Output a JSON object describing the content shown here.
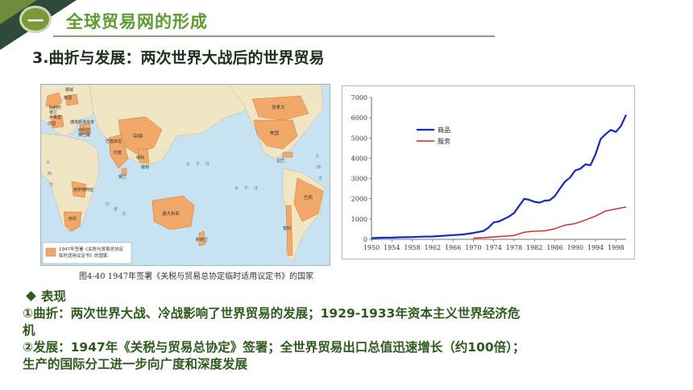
{
  "section": {
    "number": "一",
    "title": "全球贸易网的形成"
  },
  "subtitle": "3.曲折与发展：两次世界大战后的世界贸易",
  "map": {
    "caption": "图4-40   1947年签署《关税与贸易总协定临时适用议定书》的国家",
    "legend_text_1": "1947年签署《关税与贸易总协定",
    "legend_text_2": "临时适用议定书》的国家",
    "labels": [
      "英国",
      "比利时",
      "荷兰",
      "卢森堡",
      "法国",
      "挪威",
      "捷克斯洛伐克",
      "叙利亚",
      "黎巴嫩",
      "印度",
      "巴基斯坦",
      "锡兰",
      "缅甸",
      "中国",
      "缅甸",
      "南罗德西亚",
      "南非",
      "澳大利亚",
      "新西兰",
      "加拿大",
      "美国",
      "古巴",
      "巴西",
      "智利"
    ],
    "ocean_labels": [
      "大",
      "西",
      "洋",
      "太",
      "平",
      "洋",
      "印",
      "度",
      "洋",
      "太",
      "平",
      "洋",
      "大",
      "西",
      "洋"
    ]
  },
  "chart_data": {
    "type": "line",
    "x_ticks": [
      "1950",
      "1954",
      "1958",
      "1962",
      "1966",
      "1970",
      "1974",
      "1978",
      "1982",
      "1986",
      "1990",
      "1994",
      "1998"
    ],
    "y_ticks": [
      "0",
      "1000",
      "2000",
      "3000",
      "4000",
      "5000",
      "6000",
      "7000"
    ],
    "ylim": [
      0,
      7000
    ],
    "xlim": [
      1950,
      2000
    ],
    "legend_position": "top-left",
    "colors": {
      "goods": "#1428c8",
      "services": "#d42020"
    },
    "series": [
      {
        "name": "商品",
        "x": [
          1950,
          1952,
          1954,
          1956,
          1958,
          1960,
          1962,
          1964,
          1966,
          1968,
          1970,
          1972,
          1973,
          1974,
          1975,
          1976,
          1977,
          1978,
          1979,
          1980,
          1981,
          1982,
          1983,
          1984,
          1985,
          1986,
          1987,
          1988,
          1989,
          1990,
          1991,
          1992,
          1993,
          1994,
          1995,
          1996,
          1997,
          1998,
          1999,
          2000
        ],
        "y": [
          60,
          80,
          85,
          105,
          110,
          130,
          140,
          175,
          205,
          240,
          315,
          410,
          580,
          840,
          880,
          1000,
          1120,
          1300,
          1650,
          2000,
          1950,
          1850,
          1810,
          1910,
          1930,
          2130,
          2500,
          2850,
          3050,
          3400,
          3480,
          3700,
          3660,
          4200,
          4950,
          5200,
          5400,
          5300,
          5600,
          6150
        ]
      },
      {
        "name": "服务",
        "x": [
          1970,
          1972,
          1974,
          1976,
          1978,
          1980,
          1982,
          1984,
          1986,
          1988,
          1990,
          1992,
          1994,
          1996,
          1998,
          2000
        ],
        "y": [
          60,
          80,
          120,
          150,
          190,
          350,
          400,
          420,
          520,
          700,
          780,
          950,
          1150,
          1400,
          1500,
          1600
        ]
      }
    ]
  },
  "body": {
    "heading": "表现",
    "line1": "①曲折：两次世界大战、冷战影响了世界贸易的发展；1929-1933年资本主义世界经济危",
    "line2": "机",
    "line3": "②发展：1947年《关税与贸易总协定》签署；全世界贸易出口总值迅速增长（约100倍）；",
    "line4": "生产的国际分工进一步向广度和深度发展"
  }
}
